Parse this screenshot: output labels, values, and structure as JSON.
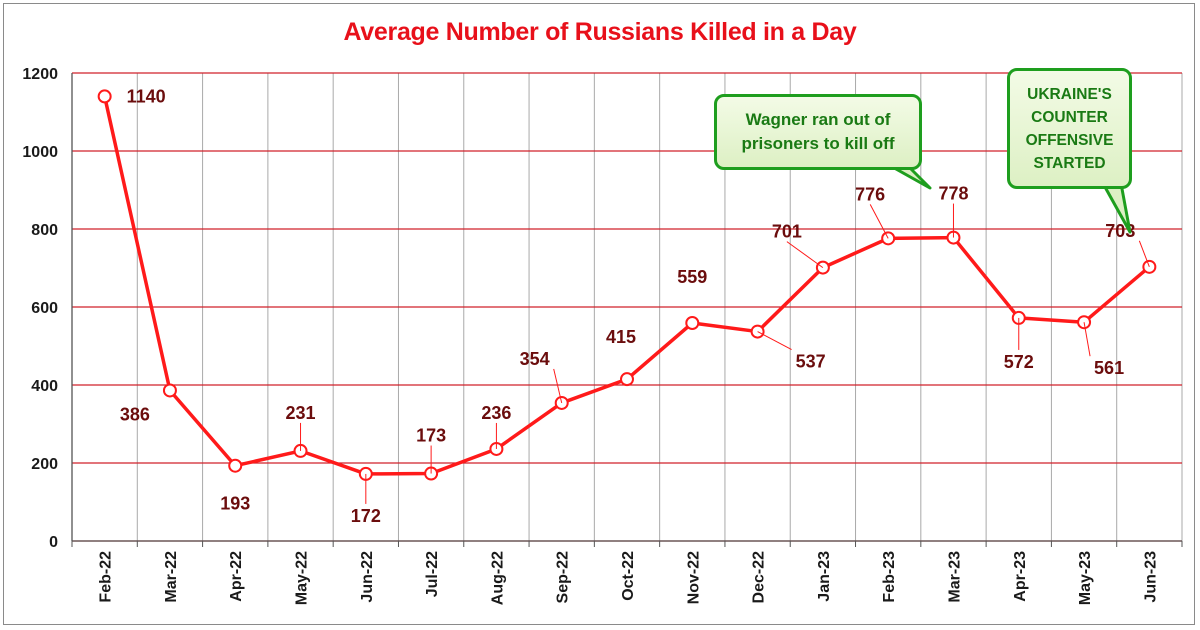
{
  "chart_data": {
    "type": "line",
    "title": "Average Number of Russians Killed in a Day",
    "xlabel": "",
    "ylabel": "",
    "categories": [
      "Feb-22",
      "Mar-22",
      "Apr-22",
      "May-22",
      "Jun-22",
      "Jul-22",
      "Aug-22",
      "Sep-22",
      "Oct-22",
      "Nov-22",
      "Dec-22",
      "Jan-23",
      "Feb-23",
      "Mar-23",
      "Apr-23",
      "May-23",
      "Jun-23"
    ],
    "series": [
      {
        "values": [
          1140,
          386,
          193,
          231,
          172,
          173,
          236,
          354,
          415,
          559,
          537,
          701,
          776,
          778,
          572,
          561,
          703
        ]
      }
    ],
    "data_labels": [
      "1140",
      "386",
      "193",
      "231",
      "172",
      "173",
      "236",
      "354",
      "415",
      "559",
      "537",
      "701",
      "776",
      "778",
      "572",
      "561",
      "703"
    ],
    "ylim": [
      0,
      1200
    ],
    "y_ticks": [
      "0",
      "200",
      "400",
      "600",
      "800",
      "1000",
      "1200"
    ],
    "grid": true,
    "line_color": "#ff1a1a",
    "grid_color": "#d0202a",
    "title_color": "#e8101a",
    "label_color": "#6b0d0d",
    "annotations": [
      {
        "text": "Wagner ran out of\nprisoners to kill off",
        "points_to": "Mar-23"
      },
      {
        "text": "UKRAINE'S\nCOUNTER\nOFFENSIVE\nSTARTED",
        "points_to": "Jun-23"
      }
    ]
  }
}
